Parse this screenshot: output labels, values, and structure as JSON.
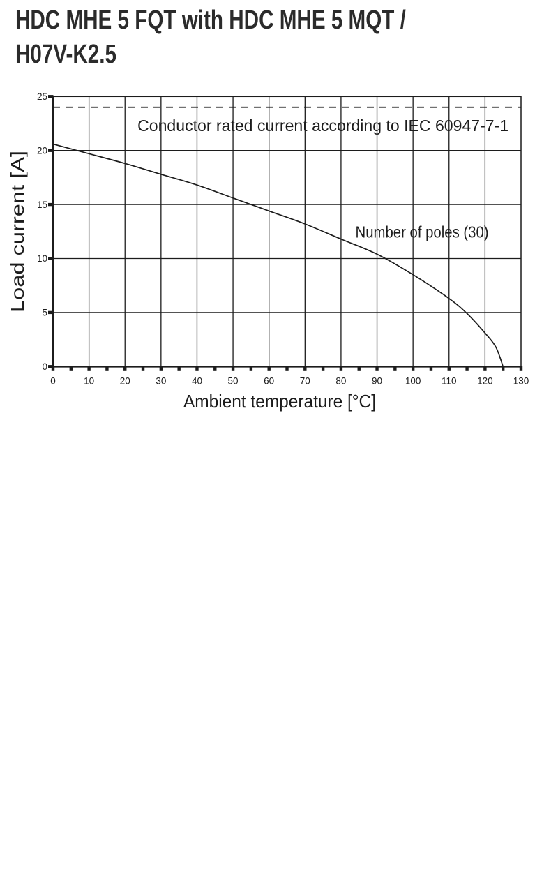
{
  "page": {
    "title_line1": "HDC MHE 5 FQT with HDC MHE 5 MQT /",
    "title_line2": "H07V-K2.5"
  },
  "chart_data": {
    "type": "line",
    "title": "HDC MHE 5 FQT with HDC MHE 5 MQT / H07V-K2.5",
    "xlabel": "Ambient temperature [°C]",
    "ylabel": "Load current [A]",
    "xlim": [
      0,
      130
    ],
    "ylim": [
      0,
      25
    ],
    "x_major_ticks": [
      0,
      10,
      20,
      30,
      40,
      50,
      60,
      70,
      80,
      90,
      100,
      110,
      120,
      130
    ],
    "x_minor_step": 5,
    "y_major_ticks": [
      0,
      5,
      10,
      15,
      20,
      25
    ],
    "grid": "both",
    "legend_position": "none",
    "threshold": {
      "value": 24,
      "style": "dashed",
      "label": "Conductor rated current according to IEC 60947-7-1",
      "label_anchor": {
        "x": 75,
        "y": 21.8
      }
    },
    "series": [
      {
        "name": "Number of poles (30)",
        "label_anchor": {
          "x": 102.5,
          "y": 11.95
        },
        "points": [
          [
            0,
            20.6
          ],
          [
            10,
            19.7
          ],
          [
            20,
            18.8
          ],
          [
            30,
            17.8
          ],
          [
            40,
            16.8
          ],
          [
            50,
            15.6
          ],
          [
            60,
            14.4
          ],
          [
            70,
            13.2
          ],
          [
            80,
            11.8
          ],
          [
            90,
            10.4
          ],
          [
            100,
            8.5
          ],
          [
            110,
            6.3
          ],
          [
            115,
            4.9
          ],
          [
            120,
            3.1
          ],
          [
            123,
            1.8
          ],
          [
            125,
            0
          ]
        ]
      }
    ],
    "colors": {
      "ink": "#1c1c1c",
      "grid": "#1c1c1c",
      "title_text": "#2b2b2b",
      "background": "#ffffff"
    }
  }
}
